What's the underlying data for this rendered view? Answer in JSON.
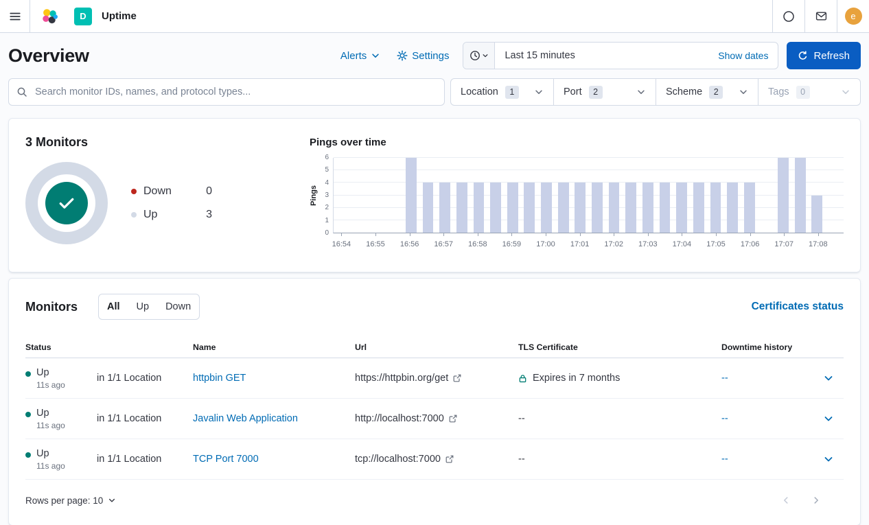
{
  "colors": {
    "link": "#006BB4",
    "primary_button": "#0A5DC2",
    "success": "#017D73",
    "danger": "#BD271E",
    "deployment_badge_bg": "#00BFB3",
    "avatar_bg": "#E8A23D"
  },
  "topbar": {
    "app_title": "Uptime",
    "deployment_badge": "D",
    "user_initial": "e"
  },
  "page_header": {
    "title": "Overview",
    "alerts_label": "Alerts",
    "settings_label": "Settings",
    "time_value": "Last 15 minutes",
    "show_dates_label": "Show dates",
    "refresh_label": "Refresh"
  },
  "search": {
    "placeholder": "Search monitor IDs, names, and protocol types...",
    "value": ""
  },
  "filters": [
    {
      "label": "Location",
      "count": "1",
      "disabled": false
    },
    {
      "label": "Port",
      "count": "2",
      "disabled": false
    },
    {
      "label": "Scheme",
      "count": "2",
      "disabled": false
    },
    {
      "label": "Tags",
      "count": "0",
      "disabled": true
    }
  ],
  "summary": {
    "title": "3 Monitors",
    "legend": [
      {
        "label": "Down",
        "value": "0",
        "color": "#BD271E"
      },
      {
        "label": "Up",
        "value": "3",
        "color": "#D3DAE6"
      }
    ]
  },
  "chart_data": {
    "type": "bar",
    "title": "Pings over time",
    "ylabel": "Pings",
    "ylim": [
      0,
      6
    ],
    "yticks": [
      0,
      1,
      2,
      3,
      4,
      5,
      6
    ],
    "bar_color": "#C8D0E8",
    "grid": true,
    "x_minute_labels": [
      "16:54",
      "16:55",
      "16:56",
      "16:57",
      "16:58",
      "16:59",
      "17:00",
      "17:01",
      "17:02",
      "17:03",
      "17:04",
      "17:05",
      "17:06",
      "17:07",
      "17:08"
    ],
    "slot_interval_seconds": 30,
    "values": [
      0,
      0,
      0,
      0,
      6,
      4,
      4,
      4,
      4,
      4,
      4,
      4,
      4,
      4,
      4,
      4,
      4,
      4,
      4,
      4,
      4,
      4,
      4,
      4,
      4,
      0,
      6,
      6,
      3,
      0
    ]
  },
  "monitors": {
    "title": "Monitors",
    "tabs": [
      {
        "label": "All",
        "selected": true
      },
      {
        "label": "Up",
        "selected": false
      },
      {
        "label": "Down",
        "selected": false
      }
    ],
    "certificates_link": "Certificates status",
    "columns": [
      "Status",
      "",
      "Name",
      "Url",
      "TLS Certificate",
      "Downtime history",
      ""
    ],
    "rows": [
      {
        "status": "Up",
        "ago": "11s ago",
        "location": "in 1/1 Location",
        "name": "httpbin GET",
        "url": "https://httpbin.org/get",
        "tls": "Expires in 7 months",
        "tls_lock": true,
        "downtime": "--"
      },
      {
        "status": "Up",
        "ago": "11s ago",
        "location": "in 1/1 Location",
        "name": "Javalin Web Application",
        "url": "http://localhost:7000",
        "tls": "--",
        "tls_lock": false,
        "downtime": "--"
      },
      {
        "status": "Up",
        "ago": "11s ago",
        "location": "in 1/1 Location",
        "name": "TCP Port 7000",
        "url": "tcp://localhost:7000",
        "tls": "--",
        "tls_lock": false,
        "downtime": "--"
      }
    ],
    "footer": {
      "rows_per_page": "Rows per page: 10"
    }
  }
}
